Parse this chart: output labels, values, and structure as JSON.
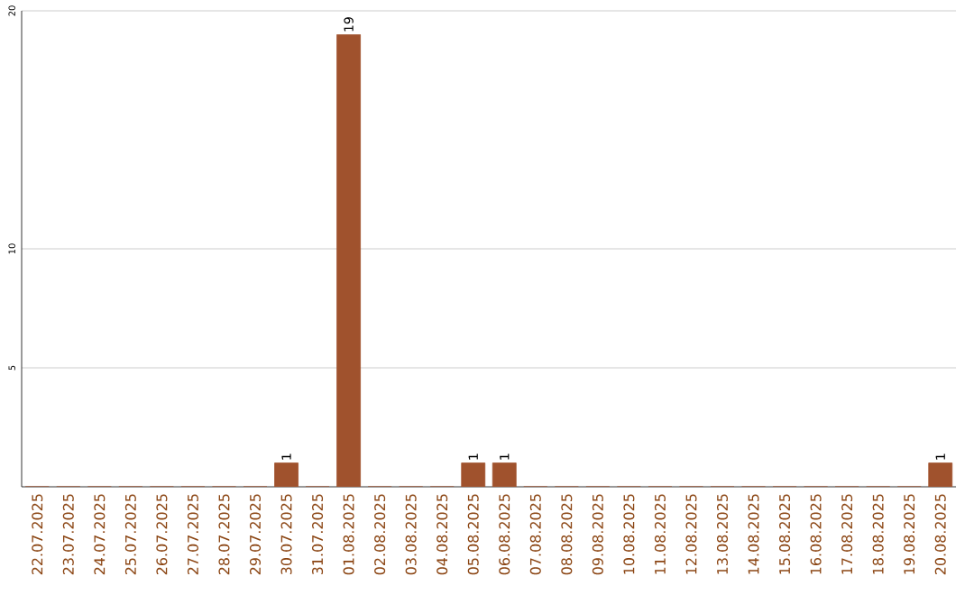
{
  "chart_data": {
    "type": "bar",
    "categories": [
      "22.07.2025",
      "23.07.2025",
      "24.07.2025",
      "25.07.2025",
      "26.07.2025",
      "27.07.2025",
      "28.07.2025",
      "29.07.2025",
      "30.07.2025",
      "31.07.2025",
      "01.08.2025",
      "02.08.2025",
      "03.08.2025",
      "04.08.2025",
      "05.08.2025",
      "06.08.2025",
      "07.08.2025",
      "08.08.2025",
      "09.08.2025",
      "10.08.2025",
      "11.08.2025",
      "12.08.2025",
      "13.08.2025",
      "14.08.2025",
      "15.08.2025",
      "16.08.2025",
      "17.08.2025",
      "18.08.2025",
      "19.08.2025",
      "20.08.2025"
    ],
    "values": [
      0,
      0,
      0,
      0,
      0,
      0,
      0,
      0,
      1,
      0,
      19,
      0,
      0,
      0,
      1,
      1,
      0,
      0,
      0,
      0,
      0,
      0,
      0,
      0,
      0,
      0,
      0,
      0,
      0,
      1
    ],
    "value_labels": [
      null,
      null,
      null,
      null,
      null,
      null,
      null,
      null,
      "1",
      null,
      "19",
      null,
      null,
      null,
      "1",
      "1",
      null,
      null,
      null,
      null,
      null,
      null,
      null,
      null,
      null,
      null,
      null,
      null,
      null,
      "1"
    ],
    "color": "#a0522d",
    "ylim": [
      0,
      20
    ],
    "yticks": [
      5,
      10,
      20
    ],
    "grid": "y"
  }
}
